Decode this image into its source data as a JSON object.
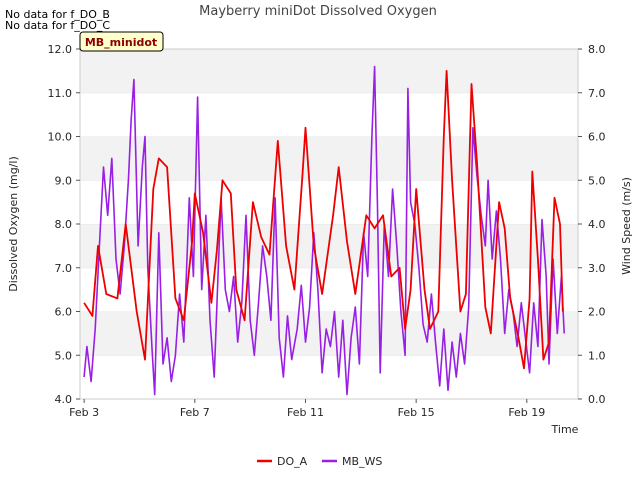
{
  "notes": [
    "No data for f_DO_B",
    "No data for f_DO_C"
  ],
  "badge": "MB_minidot",
  "chart_data": {
    "type": "line",
    "title": "Mayberry miniDot Dissolved Oxygen",
    "xlabel": "Time",
    "ylabel": "Dissolved Oxygen (mg/l)",
    "y2label": "Wind Speed (m/s)",
    "xlim": [
      2.85,
      20.85
    ],
    "ylim": [
      4.0,
      12.0
    ],
    "y2lim": [
      0.0,
      8.0
    ],
    "x_ticks": [
      3,
      7,
      11,
      15,
      19
    ],
    "x_tick_labels": [
      "Feb 3",
      "Feb 7",
      "Feb 11",
      "Feb 15",
      "Feb 19"
    ],
    "y_ticks": [
      "4.0",
      "5.0",
      "6.0",
      "7.0",
      "8.0",
      "9.0",
      "10.0",
      "11.0",
      "12.0"
    ],
    "y2_ticks": [
      "0.0",
      "1.0",
      "2.0",
      "3.0",
      "4.0",
      "5.0",
      "6.0",
      "7.0",
      "8.0"
    ],
    "grid": "horizontal bands",
    "legend": "bottom-center",
    "series": [
      {
        "name": "DO_A",
        "axis": "left",
        "color": "#ee0000",
        "points": [
          [
            3.0,
            6.2
          ],
          [
            3.3,
            5.9
          ],
          [
            3.5,
            7.5
          ],
          [
            3.8,
            6.4
          ],
          [
            4.2,
            6.3
          ],
          [
            4.5,
            8.0
          ],
          [
            4.9,
            6.0
          ],
          [
            5.2,
            4.9
          ],
          [
            5.5,
            8.8
          ],
          [
            5.7,
            9.5
          ],
          [
            6.0,
            9.3
          ],
          [
            6.3,
            6.3
          ],
          [
            6.6,
            5.8
          ],
          [
            6.9,
            7.6
          ],
          [
            7.0,
            8.7
          ],
          [
            7.3,
            7.8
          ],
          [
            7.6,
            6.2
          ],
          [
            7.8,
            7.4
          ],
          [
            8.0,
            9.0
          ],
          [
            8.3,
            8.7
          ],
          [
            8.5,
            6.5
          ],
          [
            8.8,
            5.8
          ],
          [
            9.1,
            8.5
          ],
          [
            9.4,
            7.7
          ],
          [
            9.7,
            7.3
          ],
          [
            10.0,
            9.9
          ],
          [
            10.3,
            7.5
          ],
          [
            10.6,
            6.5
          ],
          [
            10.9,
            9.2
          ],
          [
            11.0,
            10.2
          ],
          [
            11.3,
            7.5
          ],
          [
            11.6,
            6.4
          ],
          [
            12.0,
            8.2
          ],
          [
            12.2,
            9.3
          ],
          [
            12.5,
            7.6
          ],
          [
            12.8,
            6.4
          ],
          [
            13.2,
            8.2
          ],
          [
            13.5,
            7.9
          ],
          [
            13.8,
            8.2
          ],
          [
            14.1,
            6.8
          ],
          [
            14.4,
            7.0
          ],
          [
            14.6,
            5.6
          ],
          [
            14.8,
            6.5
          ],
          [
            15.0,
            8.8
          ],
          [
            15.3,
            6.5
          ],
          [
            15.5,
            5.6
          ],
          [
            15.8,
            6.0
          ],
          [
            16.0,
            10.0
          ],
          [
            16.1,
            11.5
          ],
          [
            16.3,
            9.0
          ],
          [
            16.6,
            6.0
          ],
          [
            16.8,
            6.4
          ],
          [
            17.0,
            11.2
          ],
          [
            17.2,
            9.4
          ],
          [
            17.5,
            6.1
          ],
          [
            17.7,
            5.5
          ],
          [
            18.0,
            8.5
          ],
          [
            18.2,
            7.9
          ],
          [
            18.4,
            6.3
          ],
          [
            18.7,
            5.4
          ],
          [
            18.9,
            4.7
          ],
          [
            19.1,
            6.3
          ],
          [
            19.2,
            9.2
          ],
          [
            19.4,
            7.2
          ],
          [
            19.6,
            4.9
          ],
          [
            19.8,
            5.3
          ],
          [
            20.0,
            8.6
          ],
          [
            20.2,
            8.0
          ],
          [
            20.3,
            6.0
          ]
        ]
      },
      {
        "name": "MB_WS",
        "axis": "right",
        "color": "#9a1fe5",
        "points": [
          [
            3.0,
            0.5
          ],
          [
            3.1,
            1.2
          ],
          [
            3.25,
            0.4
          ],
          [
            3.4,
            1.6
          ],
          [
            3.55,
            3.5
          ],
          [
            3.7,
            5.3
          ],
          [
            3.85,
            4.2
          ],
          [
            4.0,
            5.5
          ],
          [
            4.15,
            3.2
          ],
          [
            4.3,
            2.4
          ],
          [
            4.45,
            3.5
          ],
          [
            4.6,
            5.0
          ],
          [
            4.7,
            6.4
          ],
          [
            4.8,
            7.3
          ],
          [
            4.95,
            3.5
          ],
          [
            5.1,
            5.3
          ],
          [
            5.2,
            6.0
          ],
          [
            5.3,
            3.0
          ],
          [
            5.45,
            1.2
          ],
          [
            5.55,
            0.1
          ],
          [
            5.7,
            3.8
          ],
          [
            5.85,
            0.8
          ],
          [
            6.0,
            1.4
          ],
          [
            6.15,
            0.4
          ],
          [
            6.3,
            1.0
          ],
          [
            6.45,
            2.4
          ],
          [
            6.6,
            1.3
          ],
          [
            6.8,
            4.6
          ],
          [
            6.95,
            2.8
          ],
          [
            7.1,
            6.9
          ],
          [
            7.25,
            2.5
          ],
          [
            7.4,
            4.2
          ],
          [
            7.55,
            1.8
          ],
          [
            7.7,
            0.5
          ],
          [
            7.85,
            3.0
          ],
          [
            7.95,
            4.6
          ],
          [
            8.1,
            2.5
          ],
          [
            8.25,
            2.0
          ],
          [
            8.4,
            2.8
          ],
          [
            8.55,
            1.3
          ],
          [
            8.7,
            2.2
          ],
          [
            8.85,
            4.2
          ],
          [
            9.0,
            1.8
          ],
          [
            9.15,
            1.0
          ],
          [
            9.3,
            2.2
          ],
          [
            9.45,
            3.5
          ],
          [
            9.6,
            2.8
          ],
          [
            9.75,
            1.8
          ],
          [
            9.9,
            4.6
          ],
          [
            10.05,
            1.4
          ],
          [
            10.2,
            0.5
          ],
          [
            10.35,
            1.9
          ],
          [
            10.5,
            0.9
          ],
          [
            10.7,
            1.6
          ],
          [
            10.85,
            2.6
          ],
          [
            11.0,
            1.3
          ],
          [
            11.15,
            2.1
          ],
          [
            11.3,
            3.8
          ],
          [
            11.45,
            2.5
          ],
          [
            11.6,
            0.6
          ],
          [
            11.75,
            1.6
          ],
          [
            11.9,
            1.2
          ],
          [
            12.05,
            2.0
          ],
          [
            12.2,
            0.5
          ],
          [
            12.35,
            1.8
          ],
          [
            12.5,
            0.1
          ],
          [
            12.65,
            1.4
          ],
          [
            12.8,
            2.1
          ],
          [
            12.95,
            0.8
          ],
          [
            13.1,
            3.8
          ],
          [
            13.25,
            2.8
          ],
          [
            13.4,
            6.0
          ],
          [
            13.5,
            7.6
          ],
          [
            13.6,
            4.5
          ],
          [
            13.7,
            0.6
          ],
          [
            13.85,
            4.0
          ],
          [
            14.0,
            2.8
          ],
          [
            14.15,
            4.8
          ],
          [
            14.3,
            3.5
          ],
          [
            14.45,
            2.0
          ],
          [
            14.6,
            1.0
          ],
          [
            14.7,
            7.1
          ],
          [
            14.8,
            4.5
          ],
          [
            14.95,
            4.0
          ],
          [
            15.1,
            3.0
          ],
          [
            15.25,
            1.7
          ],
          [
            15.4,
            1.3
          ],
          [
            15.55,
            2.4
          ],
          [
            15.7,
            1.3
          ],
          [
            15.85,
            0.3
          ],
          [
            16.0,
            1.6
          ],
          [
            16.15,
            0.2
          ],
          [
            16.3,
            1.3
          ],
          [
            16.45,
            0.5
          ],
          [
            16.6,
            1.5
          ],
          [
            16.75,
            0.8
          ],
          [
            16.9,
            2.1
          ],
          [
            17.05,
            6.2
          ],
          [
            17.2,
            5.1
          ],
          [
            17.35,
            4.2
          ],
          [
            17.5,
            3.5
          ],
          [
            17.6,
            5.0
          ],
          [
            17.75,
            3.2
          ],
          [
            17.9,
            4.3
          ],
          [
            18.05,
            3.2
          ],
          [
            18.2,
            1.5
          ],
          [
            18.35,
            2.5
          ],
          [
            18.5,
            2.0
          ],
          [
            18.65,
            1.2
          ],
          [
            18.8,
            2.2
          ],
          [
            18.95,
            1.4
          ],
          [
            19.1,
            0.6
          ],
          [
            19.25,
            2.2
          ],
          [
            19.4,
            1.2
          ],
          [
            19.55,
            4.1
          ],
          [
            19.7,
            2.8
          ],
          [
            19.8,
            0.8
          ],
          [
            19.95,
            3.2
          ],
          [
            20.1,
            1.5
          ],
          [
            20.25,
            2.8
          ],
          [
            20.35,
            1.5
          ]
        ]
      }
    ]
  }
}
